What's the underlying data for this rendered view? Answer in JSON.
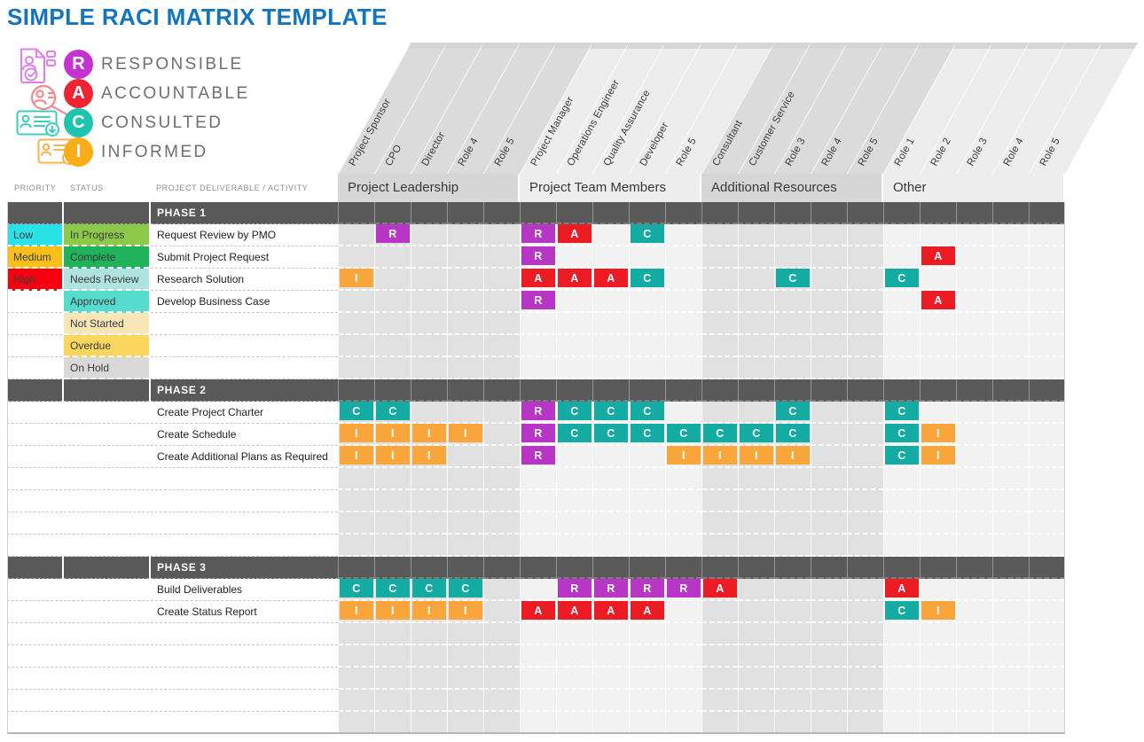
{
  "title": "SIMPLE RACI MATRIX TEMPLATE",
  "legend": [
    {
      "key": "R",
      "label": "RESPONSIBLE",
      "color": "#c433d0",
      "icon": "document-user-icon"
    },
    {
      "key": "A",
      "label": "ACCOUNTABLE",
      "color": "#ee2433",
      "icon": "search-user-icon"
    },
    {
      "key": "C",
      "label": "CONSULTED",
      "color": "#1ec4b0",
      "icon": "id-card-down-icon"
    },
    {
      "key": "I",
      "label": "INFORMED",
      "color": "#fbad19",
      "icon": "id-card-up-icon"
    }
  ],
  "colors": {
    "title_blue": "#1474bd",
    "phase_bar": "#595959",
    "raci": {
      "R": "#b736c5",
      "A": "#ec1c24",
      "C": "#14aba3",
      "I": "#f9a63c"
    },
    "priority": {
      "Low": "#29e2e8",
      "Medium": "#fbbf17",
      "High": "#f6000f"
    },
    "status": {
      "In Progress": "#8cc949",
      "Complete": "#1fb35b",
      "Needs Review": "#aee3df",
      "Approved": "#56dcce",
      "Not Started": "#f8e6b6",
      "Overdue": "#fad65c",
      "On Hold": "#d9d9d9"
    }
  },
  "column_headers": {
    "priority": "PRIORITY",
    "status": "STATUS",
    "deliverable": "PROJECT DELIVERABLE / ACTIVITY"
  },
  "groups": [
    {
      "label": "Project Leadership",
      "shade": "dark",
      "roles": [
        "Project Sponsor",
        "CPO",
        "Director",
        "Role 4",
        "Role 5"
      ]
    },
    {
      "label": "Project Team Members",
      "shade": "light",
      "roles": [
        "Project Manager",
        "Operations Engineer",
        "Quality Assurance",
        "Developer",
        "Role 5"
      ]
    },
    {
      "label": "Additional Resources",
      "shade": "dark",
      "roles": [
        "Consultant",
        "Customer Service",
        "Role 3",
        "Role 4",
        "Role 5"
      ]
    },
    {
      "label": "Other",
      "shade": "light",
      "roles": [
        "Role 1",
        "Role 2",
        "Role 3",
        "Role 4",
        "Role 5"
      ]
    }
  ],
  "rows": [
    {
      "type": "phase",
      "label": "PHASE 1"
    },
    {
      "type": "task",
      "priority": "Low",
      "status": "In Progress",
      "deliverable": "Request Review by PMO",
      "assignments": {
        "2": "R",
        "6": "R",
        "7": "A",
        "9": "C"
      }
    },
    {
      "type": "task",
      "priority": "Medium",
      "status": "Complete",
      "deliverable": "Submit Project Request",
      "assignments": {
        "6": "R",
        "17": "A"
      }
    },
    {
      "type": "task",
      "priority": "High",
      "status": "Needs Review",
      "deliverable": "Research Solution",
      "assignments": {
        "1": "I",
        "6": "A",
        "7": "A",
        "8": "A",
        "9": "C",
        "13": "C",
        "16": "C"
      }
    },
    {
      "type": "task",
      "status": "Approved",
      "deliverable": "Develop Business Case",
      "assignments": {
        "6": "R",
        "17": "A"
      }
    },
    {
      "type": "task",
      "status": "Not Started",
      "assignments": {}
    },
    {
      "type": "task",
      "status": "Overdue",
      "assignments": {}
    },
    {
      "type": "task",
      "status": "On Hold",
      "assignments": {}
    },
    {
      "type": "phase",
      "label": "PHASE 2"
    },
    {
      "type": "task",
      "deliverable": "Create Project Charter",
      "assignments": {
        "1": "C",
        "2": "C",
        "6": "R",
        "7": "C",
        "8": "C",
        "9": "C",
        "13": "C",
        "16": "C"
      }
    },
    {
      "type": "task",
      "deliverable": "Create Schedule",
      "assignments": {
        "1": "I",
        "2": "I",
        "3": "I",
        "4": "I",
        "6": "R",
        "7": "C",
        "8": "C",
        "9": "C",
        "10": "C",
        "11": "C",
        "12": "C",
        "13": "C",
        "16": "C",
        "17": "I"
      }
    },
    {
      "type": "task",
      "deliverable": "Create Additional Plans as Required",
      "assignments": {
        "1": "I",
        "2": "I",
        "3": "I",
        "6": "R",
        "10": "I",
        "11": "I",
        "12": "I",
        "13": "I",
        "16": "C",
        "17": "I"
      }
    },
    {
      "type": "empty"
    },
    {
      "type": "empty"
    },
    {
      "type": "empty"
    },
    {
      "type": "empty"
    },
    {
      "type": "phase",
      "label": "PHASE 3"
    },
    {
      "type": "task",
      "deliverable": "Build Deliverables",
      "assignments": {
        "1": "C",
        "2": "C",
        "3": "C",
        "4": "C",
        "7": "R",
        "8": "R",
        "9": "R",
        "10": "R",
        "11": "A",
        "16": "A"
      }
    },
    {
      "type": "task",
      "deliverable": "Create Status Report",
      "assignments": {
        "1": "I",
        "2": "I",
        "3": "I",
        "4": "I",
        "6": "A",
        "7": "A",
        "8": "A",
        "9": "A",
        "16": "C",
        "17": "I"
      }
    },
    {
      "type": "empty"
    },
    {
      "type": "empty"
    },
    {
      "type": "empty"
    },
    {
      "type": "empty"
    },
    {
      "type": "empty"
    }
  ]
}
